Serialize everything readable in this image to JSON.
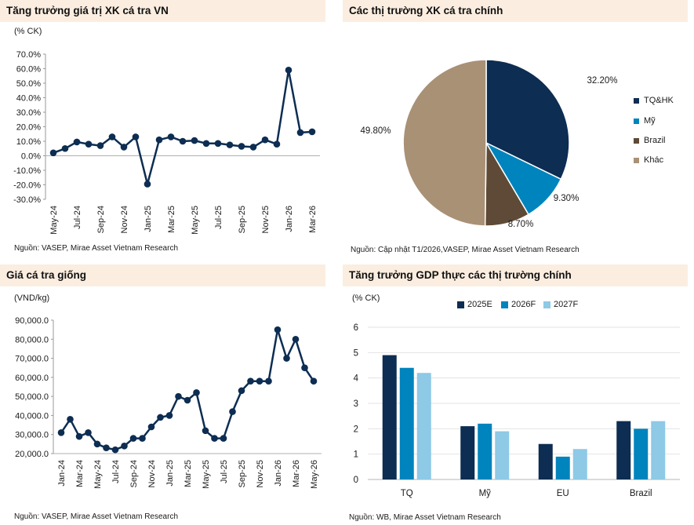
{
  "colors": {
    "navy": "#0d2d52",
    "blue": "#0084bd",
    "lightblue": "#8ec9e6",
    "brown": "#5e4a36",
    "tan": "#a99176",
    "header_bg": "#fbeee0"
  },
  "charts": {
    "export_growth": {
      "title": "Tăng trưởng giá trị XK cá tra VN",
      "unit": "(% CK)",
      "source": "Nguồn: VASEP, Mirae Asset Vietnam Research"
    },
    "markets": {
      "title": "Các thị trường XK cá tra chính",
      "source": "Nguồn: Cập nhật T1/2026,VASEP, Mirae Asset Vietnam Research",
      "legend": [
        "TQ&HK",
        "Mỹ",
        "Brazil",
        "Khác"
      ]
    },
    "fingerling": {
      "title": "Giá cá tra giống",
      "unit": "(VND/kg)",
      "source": "Nguồn: VASEP, Mirae Asset Vietnam Research"
    },
    "gdp": {
      "title": "Tăng trưởng GDP thực các thị trường chính",
      "unit": "(% CK)",
      "source": "Nguồn: WB, Mirae Asset Vietnam Research",
      "legend": [
        "2025E",
        "2026F",
        "2027F"
      ]
    }
  },
  "chart_data": [
    {
      "type": "line",
      "title": "Tăng trưởng giá trị XK cá tra VN",
      "ylabel": "(% CK)",
      "x": [
        "May-24",
        "Jun-24",
        "Jul-24",
        "Aug-24",
        "Sep-24",
        "Oct-24",
        "Nov-24",
        "Dec-24",
        "Jan-25",
        "Feb-25",
        "Mar-25",
        "Apr-25",
        "May-25",
        "Jun-25",
        "Jul-25",
        "Aug-25",
        "Sep-25",
        "Oct-25",
        "Nov-25",
        "Dec-25",
        "Jan-26",
        "Feb-26",
        "Mar-26"
      ],
      "values": [
        2,
        5,
        9.5,
        8,
        7,
        13,
        6,
        13,
        -19.5,
        11,
        13,
        10,
        10.5,
        8.5,
        8.5,
        7.5,
        6.5,
        6,
        11,
        8,
        59,
        16,
        16.5
      ],
      "tick_labels": [
        "May-24",
        "Jul-24",
        "Sep-24",
        "Nov-24",
        "Jan-25",
        "Mar-25",
        "May-25",
        "Jul-25",
        "Sep-25",
        "Nov-25",
        "Jan-26",
        "Mar-26"
      ],
      "yticks": [
        "70.0%",
        "60.0%",
        "50.0%",
        "40.0%",
        "30.0%",
        "20.0%",
        "10.0%",
        "0.0%",
        "-10.0%",
        "-20.0%",
        "-30.0%"
      ],
      "ylim": [
        -30,
        70
      ],
      "grid": false
    },
    {
      "type": "pie",
      "title": "Các thị trường XK cá tra chính",
      "categories": [
        "TQ&HK",
        "Mỹ",
        "Brazil",
        "Khác"
      ],
      "values": [
        32.2,
        9.3,
        8.7,
        49.8
      ],
      "labels": [
        "32.20%",
        "9.30%",
        "8.70%",
        "49.80%"
      ],
      "legend": "right"
    },
    {
      "type": "line",
      "title": "Giá cá tra giống",
      "ylabel": "(VND/kg)",
      "x": [
        "Jan-24",
        "Feb-24",
        "Mar-24",
        "Apr-24",
        "May-24",
        "Jun-24",
        "Jul-24",
        "Aug-24",
        "Sep-24",
        "Oct-24",
        "Nov-24",
        "Dec-24",
        "Jan-25",
        "Feb-25",
        "Mar-25",
        "Apr-25",
        "May-25",
        "Jun-25",
        "Jul-25",
        "Aug-25",
        "Sep-25",
        "Oct-25",
        "Nov-25",
        "Dec-25",
        "Jan-26",
        "Feb-26",
        "Mar-26",
        "Apr-26",
        "May-26"
      ],
      "values": [
        31000,
        38000,
        29000,
        31000,
        25000,
        23000,
        22000,
        24000,
        28000,
        28000,
        34000,
        39000,
        40000,
        50000,
        48000,
        52000,
        32000,
        28000,
        28000,
        42000,
        53000,
        58000,
        58000,
        58000,
        85000,
        70000,
        80000,
        65000,
        58000
      ],
      "tick_labels": [
        "Jan-24",
        "Mar-24",
        "May-24",
        "Jul-24",
        "Sep-24",
        "Nov-24",
        "Jan-25",
        "Mar-25",
        "May-25",
        "Jul-25",
        "Sep-25",
        "Nov-25",
        "Jan-26",
        "Mar-26",
        "May-26"
      ],
      "yticks": [
        "90,000.0",
        "80,000.0",
        "70,000.0",
        "60,000.0",
        "50,000.0",
        "40,000.0",
        "30,000.0",
        "20,000.0"
      ],
      "ylim": [
        20000,
        90000
      ],
      "grid": false
    },
    {
      "type": "bar",
      "title": "Tăng trưởng GDP thực các thị trường chính",
      "ylabel": "(% CK)",
      "categories": [
        "TQ",
        "Mỹ",
        "EU",
        "Brazil"
      ],
      "series": [
        {
          "name": "2025E",
          "values": [
            4.9,
            2.1,
            1.4,
            2.3
          ]
        },
        {
          "name": "2026F",
          "values": [
            4.4,
            2.2,
            0.9,
            2.0
          ]
        },
        {
          "name": "2027F",
          "values": [
            4.2,
            1.9,
            1.2,
            2.3
          ]
        }
      ],
      "yticks": [
        "6",
        "5",
        "4",
        "3",
        "2",
        "1",
        "0"
      ],
      "ylim": [
        0,
        6
      ],
      "legend": "top",
      "grid": true
    }
  ]
}
